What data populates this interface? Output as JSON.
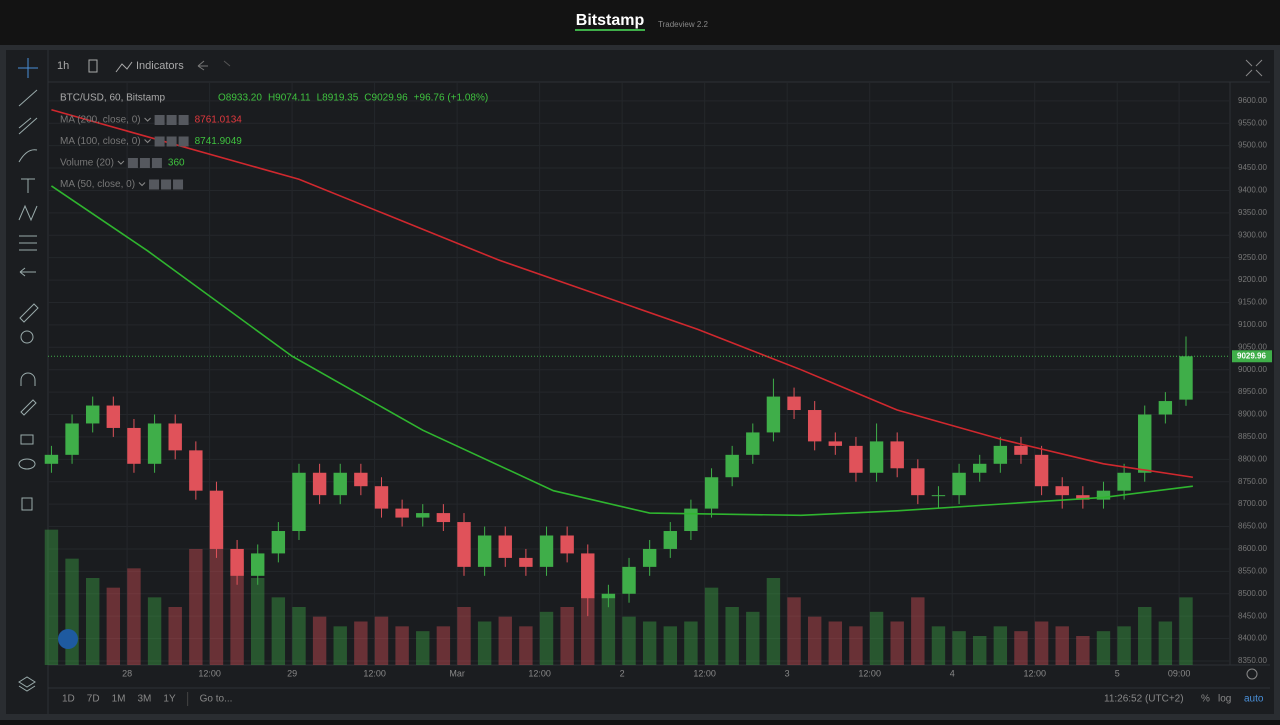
{
  "header": {
    "title": "Bitstamp",
    "subtitle": "Tradeview 2.2"
  },
  "toolbar": {
    "interval": "1h",
    "indicators": "Indicators"
  },
  "legend": {
    "symbol": "BTC/USD, 60, Bitstamp",
    "ohlc": [
      "O8933.20",
      "H9074.11",
      "L8919.35",
      "C9029.96",
      "+96.76 (+1.08%)"
    ],
    "studies": [
      {
        "name": "MA (200, close, 0)",
        "value": "8761.0134",
        "color": "#e0393e"
      },
      {
        "name": "MA (100, close, 0)",
        "value": "8741.9049",
        "color": "#3fc23f"
      },
      {
        "name": "Volume (20)",
        "value": "360",
        "color": "#3fc23f"
      },
      {
        "name": "MA (50, close, 0)"
      }
    ]
  },
  "bottom_bar": {
    "ranges": [
      "1D",
      "7D",
      "1M",
      "3M",
      "1Y"
    ],
    "goto": "Go to...",
    "clock": "11:26:52 (UTC+2)",
    "options": [
      "%",
      "log",
      "auto"
    ]
  },
  "chart_data": {
    "type": "candlestick",
    "up_color": "#3fae49",
    "down_color": "#e0525a",
    "x": [
      -11,
      -8,
      -5,
      -2,
      1,
      4,
      7,
      10,
      13,
      16,
      19,
      22,
      25,
      28,
      31,
      34,
      37,
      40,
      43,
      46,
      49,
      52,
      55,
      58,
      61,
      64,
      67,
      70,
      73,
      76,
      79,
      82,
      85,
      88,
      91,
      94,
      97,
      100,
      103,
      106,
      109,
      112,
      115,
      118,
      121,
      124,
      127,
      130,
      133,
      136,
      139,
      142,
      145,
      148,
      151,
      154
    ],
    "open": [
      8790,
      8810,
      8880,
      8920,
      8870,
      8790,
      8880,
      8820,
      8730,
      8600,
      8540,
      8590,
      8640,
      8770,
      8720,
      8770,
      8740,
      8690,
      8670,
      8680,
      8660,
      8560,
      8630,
      8580,
      8560,
      8630,
      8590,
      8490,
      8500,
      8560,
      8600,
      8640,
      8690,
      8760,
      8810,
      8860,
      8940,
      8910,
      8840,
      8830,
      8770,
      8840,
      8780,
      8720,
      8720,
      8770,
      8790,
      8830,
      8810,
      8740,
      8720,
      8710,
      8730,
      8770,
      8900,
      8933.2
    ],
    "high": [
      8830,
      8900,
      8940,
      8940,
      8890,
      8900,
      8900,
      8840,
      8750,
      8620,
      8610,
      8660,
      8790,
      8790,
      8790,
      8790,
      8760,
      8710,
      8700,
      8700,
      8680,
      8650,
      8650,
      8600,
      8650,
      8650,
      8610,
      8520,
      8580,
      8620,
      8660,
      8710,
      8780,
      8830,
      8880,
      8980,
      8960,
      8930,
      8860,
      8850,
      8880,
      8860,
      8800,
      8740,
      8790,
      8810,
      8850,
      8850,
      8830,
      8760,
      8740,
      8750,
      8790,
      8920,
      8950,
      9074.11
    ],
    "low": [
      8770,
      8790,
      8860,
      8850,
      8770,
      8770,
      8800,
      8710,
      8580,
      8520,
      8520,
      8570,
      8620,
      8700,
      8700,
      8720,
      8670,
      8650,
      8650,
      8640,
      8540,
      8540,
      8560,
      8540,
      8540,
      8570,
      8450,
      8470,
      8480,
      8540,
      8580,
      8620,
      8670,
      8740,
      8790,
      8840,
      8890,
      8820,
      8810,
      8750,
      8750,
      8760,
      8700,
      8690,
      8700,
      8750,
      8770,
      8790,
      8720,
      8690,
      8690,
      8690,
      8710,
      8750,
      8880,
      8919.35
    ],
    "close": [
      8810,
      8880,
      8920,
      8870,
      8790,
      8880,
      8820,
      8730,
      8600,
      8540,
      8590,
      8640,
      8770,
      8720,
      8770,
      8740,
      8690,
      8670,
      8680,
      8660,
      8560,
      8630,
      8580,
      8560,
      8630,
      8590,
      8490,
      8500,
      8560,
      8600,
      8640,
      8690,
      8760,
      8810,
      8860,
      8940,
      8910,
      8840,
      8830,
      8770,
      8840,
      8780,
      8720,
      8720,
      8770,
      8790,
      8830,
      8810,
      8740,
      8720,
      8710,
      8730,
      8770,
      8900,
      8930,
      9029.96
    ],
    "volume": [
      140,
      110,
      90,
      80,
      100,
      70,
      60,
      120,
      150,
      110,
      90,
      70,
      60,
      50,
      40,
      45,
      50,
      40,
      35,
      40,
      60,
      45,
      50,
      40,
      55,
      60,
      110,
      70,
      50,
      45,
      40,
      45,
      80,
      60,
      55,
      90,
      70,
      50,
      45,
      40,
      55,
      45,
      70,
      40,
      35,
      30,
      40,
      35,
      45,
      40,
      30,
      35,
      40,
      60,
      45,
      70
    ],
    "lines": [
      {
        "name": "MA (200, close, 0)",
        "color": "#d0282e",
        "x": [
          -11,
          25,
          54,
          83,
          98,
          112,
          127,
          142,
          155
        ],
        "values": [
          9580,
          9425,
          9245,
          9090,
          9000,
          8910,
          8845,
          8790,
          8760
        ]
      },
      {
        "name": "MA (100, close, 0)",
        "color": "#2fb52f",
        "x": [
          -11,
          3,
          24,
          43,
          62,
          76,
          98,
          112,
          127,
          142,
          155
        ],
        "values": [
          9410,
          9265,
          9030,
          8865,
          8730,
          8680,
          8675,
          8685,
          8700,
          8715,
          8740
        ]
      }
    ],
    "last_price": {
      "value": 9029.96,
      "label": "9029.96"
    },
    "xlim": [
      -11.5,
      160.4
    ],
    "ylim": [
      8341,
      9642
    ],
    "xticks": [
      {
        "value": 0,
        "label": "28"
      },
      {
        "value": 12,
        "label": "12:00"
      },
      {
        "value": 24,
        "label": "29"
      },
      {
        "value": 36,
        "label": "12:00"
      },
      {
        "value": 48,
        "label": "Mar"
      },
      {
        "value": 60,
        "label": "12:00"
      },
      {
        "value": 72,
        "label": "2"
      },
      {
        "value": 84,
        "label": "12:00"
      },
      {
        "value": 96,
        "label": "3"
      },
      {
        "value": 108,
        "label": "12:00"
      },
      {
        "value": 120,
        "label": "4"
      },
      {
        "value": 132,
        "label": "12:00"
      },
      {
        "value": 144,
        "label": "5"
      },
      {
        "value": 153,
        "label": "09:00"
      }
    ],
    "yticks": [
      {
        "value": 8350,
        "label": "8350.00"
      },
      {
        "value": 8400,
        "label": "8400.00"
      },
      {
        "value": 8450,
        "label": "8450.00"
      },
      {
        "value": 8500,
        "label": "8500.00"
      },
      {
        "value": 8550,
        "label": "8550.00"
      },
      {
        "value": 8600,
        "label": "8600.00"
      },
      {
        "value": 8650,
        "label": "8650.00"
      },
      {
        "value": 8700,
        "label": "8700.00"
      },
      {
        "value": 8750,
        "label": "8750.00"
      },
      {
        "value": 8800,
        "label": "8800.00"
      },
      {
        "value": 8850,
        "label": "8850.00"
      },
      {
        "value": 8900,
        "label": "8900.00"
      },
      {
        "value": 8950,
        "label": "8950.00"
      },
      {
        "value": 9000,
        "label": "9000.00"
      },
      {
        "value": 9050,
        "label": "9050.00"
      },
      {
        "value": 9100,
        "label": "9100.00"
      },
      {
        "value": 9150,
        "label": "9150.00"
      },
      {
        "value": 9200,
        "label": "9200.00"
      },
      {
        "value": 9250,
        "label": "9250.00"
      },
      {
        "value": 9300,
        "label": "9300.00"
      },
      {
        "value": 9350,
        "label": "9350.00"
      },
      {
        "value": 9400,
        "label": "9400.00"
      },
      {
        "value": 9450,
        "label": "9450.00"
      },
      {
        "value": 9500,
        "label": "9500.00"
      },
      {
        "value": 9550,
        "label": "9550.00"
      },
      {
        "value": 9600,
        "label": "9600.00"
      }
    ],
    "grid": true
  }
}
